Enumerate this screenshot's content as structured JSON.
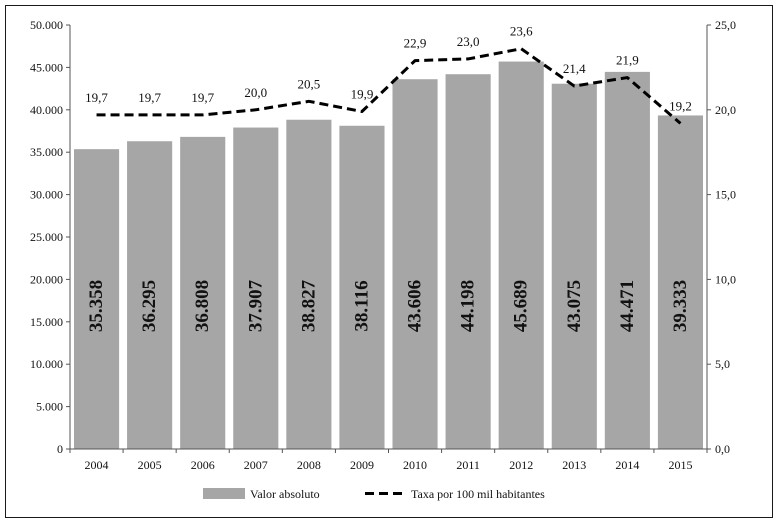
{
  "chart_data": {
    "type": "bar",
    "categories": [
      "2004",
      "2005",
      "2006",
      "2007",
      "2008",
      "2009",
      "2010",
      "2011",
      "2012",
      "2013",
      "2014",
      "2015"
    ],
    "series": [
      {
        "name": "Valor absoluto",
        "type": "bar",
        "axis": "left",
        "values": [
          35358,
          36295,
          36808,
          37907,
          38827,
          38116,
          43606,
          44198,
          45689,
          43075,
          44471,
          39333
        ],
        "labels": [
          "35.358",
          "36.295",
          "36.808",
          "37.907",
          "38.827",
          "38.116",
          "43.606",
          "44.198",
          "45.689",
          "43.075",
          "44.471",
          "39.333"
        ],
        "color": "#a6a6a6"
      },
      {
        "name": "Taxa por 100 mil habitantes",
        "type": "line",
        "style": "dashed",
        "axis": "right",
        "values": [
          19.7,
          19.7,
          19.7,
          20.0,
          20.5,
          19.9,
          22.9,
          23.0,
          23.6,
          21.4,
          21.9,
          19.2
        ],
        "labels": [
          "19,7",
          "19,7",
          "19,7",
          "20,0",
          "20,5",
          "19,9",
          "22,9",
          "23,0",
          "23,6",
          "21,4",
          "21,9",
          "19,2"
        ],
        "color": "#000000"
      }
    ],
    "y_left": {
      "range": [
        0,
        50000
      ],
      "ticks": [
        0,
        5000,
        10000,
        15000,
        20000,
        25000,
        30000,
        35000,
        40000,
        45000,
        50000
      ],
      "tick_labels": [
        "0",
        "5.000",
        "10.000",
        "15.000",
        "20.000",
        "25.000",
        "30.000",
        "35.000",
        "40.000",
        "45.000",
        "50.000"
      ]
    },
    "y_right": {
      "range": [
        0,
        25
      ],
      "ticks": [
        0,
        5,
        10,
        15,
        20,
        25
      ],
      "tick_labels": [
        "0,0",
        "5,0",
        "10,0",
        "15,0",
        "20,0",
        "25,0"
      ]
    },
    "title": "",
    "xlabel": "",
    "ylabel": "",
    "grid": false,
    "legend": "bottom"
  }
}
